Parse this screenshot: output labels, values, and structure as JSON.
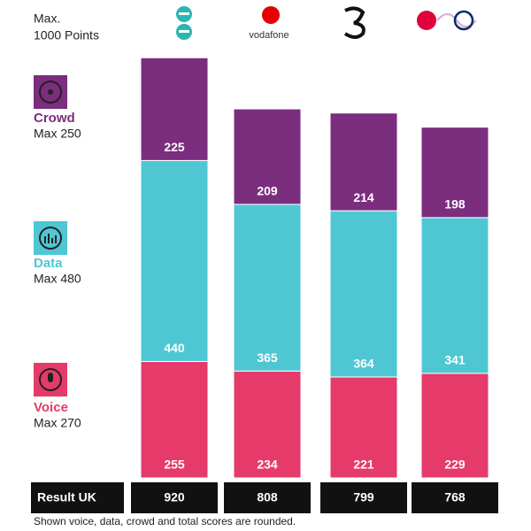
{
  "chart_data": {
    "type": "stacked-bar",
    "header": [
      "Max.",
      "1000 Points"
    ],
    "categories": [
      null,
      "vodafone",
      null,
      null
    ],
    "ylim": [
      0,
      1000
    ],
    "series": [
      {
        "name": "Voice",
        "subtitle": "Max 270",
        "color": "#e53a6a",
        "values": [
          255,
          234,
          221,
          229
        ]
      },
      {
        "name": "Data",
        "subtitle": "Max 480",
        "color": "#4ec7d3",
        "values": [
          440,
          365,
          364,
          341
        ]
      },
      {
        "name": "Crowd",
        "subtitle": "Max 250",
        "color": "#7b2d7e",
        "values": [
          225,
          209,
          214,
          198
        ]
      }
    ],
    "result_label": "Result UK",
    "totals": [
      920,
      808,
      799,
      768
    ],
    "footnote": "Shown voice, data, crowd and total scores are rounded."
  }
}
